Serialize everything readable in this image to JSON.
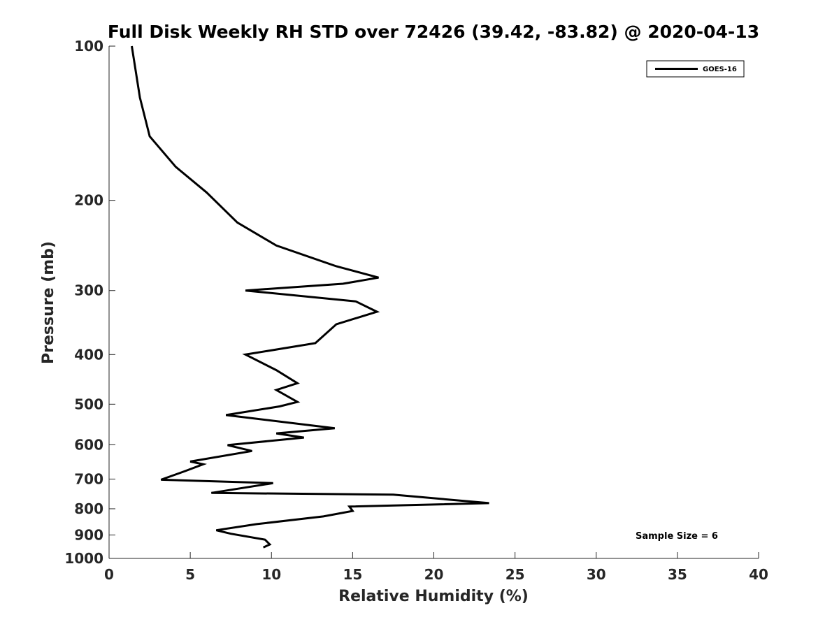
{
  "chart_data": {
    "type": "line",
    "title": "Full Disk Weekly RH STD over 72426 (39.42, -83.82) @ 2020-04-13",
    "xlabel": "Relative Humidity (%)",
    "ylabel": "Pressure (mb)",
    "xlim": [
      0,
      40
    ],
    "ylim": [
      100,
      1000
    ],
    "yscale": "log",
    "yaxis_direction": "reversed",
    "xticks": [
      0,
      5,
      10,
      15,
      20,
      25,
      30,
      35,
      40
    ],
    "yticks": [
      100,
      200,
      300,
      400,
      500,
      600,
      700,
      800,
      900,
      1000
    ],
    "grid": false,
    "legend_position": "top-right",
    "annotation": "Sample Size = 6",
    "series": [
      {
        "name": "GOES-16",
        "color": "#000000",
        "x": [
          1.4,
          1.9,
          2.5,
          4.1,
          6.0,
          7.9,
          10.3,
          14.0,
          16.6,
          14.4,
          8.4,
          15.2,
          16.5,
          14.0,
          12.7,
          8.4,
          10.3,
          11.6,
          10.3,
          11.6,
          10.5,
          7.2,
          13.9,
          10.3,
          12.0,
          7.3,
          8.8,
          5.0,
          5.8,
          4.7,
          3.2,
          10.1,
          6.3,
          17.5,
          23.4,
          14.8,
          15.0,
          13.2,
          9.1,
          6.6,
          7.5,
          9.6,
          9.9,
          9.5
        ],
        "y": [
          100,
          126,
          150,
          172,
          193,
          221,
          245,
          269,
          283,
          291,
          300,
          315,
          330,
          349,
          380,
          400,
          429,
          455,
          469,
          495,
          505,
          525,
          557,
          570,
          581,
          601,
          617,
          647,
          655,
          675,
          702,
          713,
          745,
          751,
          780,
          792,
          808,
          828,
          857,
          881,
          895,
          919,
          939,
          952
        ]
      }
    ]
  }
}
